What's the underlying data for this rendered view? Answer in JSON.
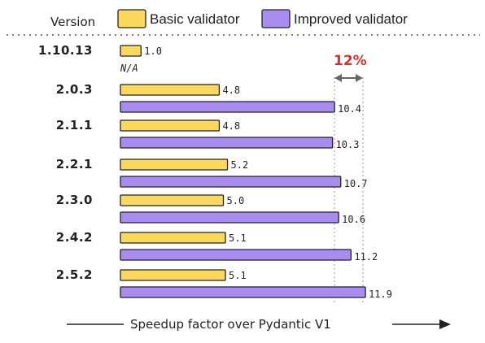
{
  "chart_data": {
    "type": "bar",
    "orientation": "horizontal",
    "legend_title": "Version",
    "categories": [
      "1.10.13",
      "2.0.3",
      "2.1.1",
      "2.2.1",
      "2.3.0",
      "2.4.2",
      "2.5.2"
    ],
    "series": [
      {
        "name": "Basic validator",
        "color": "#fcd85b",
        "values": [
          1.0,
          4.8,
          4.8,
          5.2,
          5.0,
          5.1,
          5.1
        ]
      },
      {
        "name": "Improved validator",
        "color": "#a98cf0",
        "values": [
          null,
          10.4,
          10.3,
          10.7,
          10.6,
          11.2,
          11.9
        ]
      }
    ],
    "value_labels": {
      "basic": [
        "1.0",
        "4.8",
        "4.8",
        "5.2",
        "5.0",
        "5.1",
        "5.1"
      ],
      "improved": [
        "N/A",
        "10.4",
        "10.3",
        "10.7",
        "10.6",
        "11.2",
        "11.9"
      ]
    },
    "xlabel": "Speedup factor over Pydantic V1",
    "annotation": {
      "text": "12%",
      "color": "#d9302b"
    },
    "legend_position": "top",
    "grid": false
  }
}
